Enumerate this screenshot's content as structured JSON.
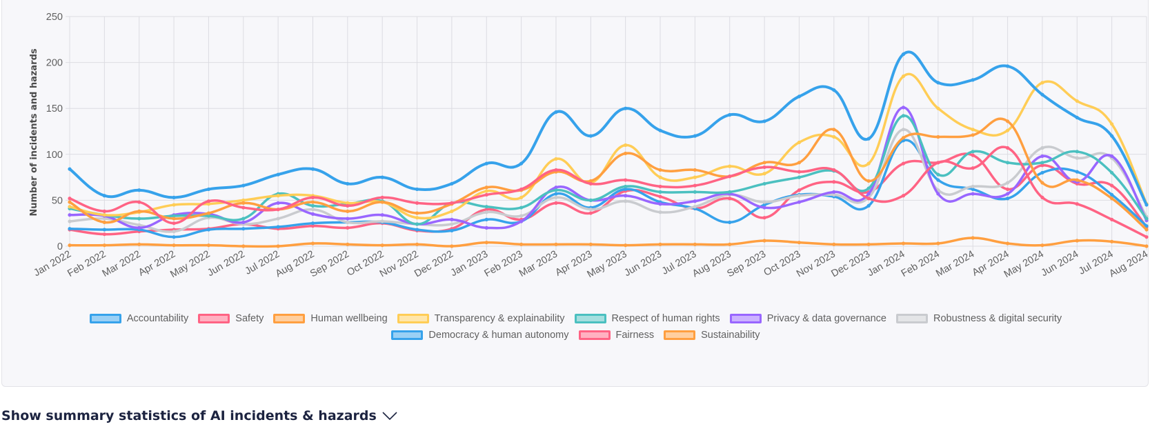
{
  "summary": {
    "label": "Show summary statistics of AI incidents & hazards"
  },
  "chart_data": {
    "type": "line",
    "title": "",
    "xlabel": "",
    "ylabel": "Number of incidents and hazards",
    "ylim": [
      0,
      250
    ],
    "yticks": [
      0,
      50,
      100,
      150,
      200,
      250
    ],
    "grid": true,
    "legend_position": "bottom",
    "categories": [
      "Jan 2022",
      "Feb 2022",
      "Mar 2022",
      "Apr 2022",
      "May 2022",
      "Jun 2022",
      "Jul 2022",
      "Aug 2022",
      "Sep 2022",
      "Oct 2022",
      "Nov 2022",
      "Dec 2022",
      "Jan 2023",
      "Feb 2023",
      "Mar 2023",
      "Apr 2023",
      "May 2023",
      "Jun 2023",
      "Jul 2023",
      "Aug 2023",
      "Sep 2023",
      "Oct 2023",
      "Nov 2023",
      "Dec 2023",
      "Jan 2024",
      "Feb 2024",
      "Mar 2024",
      "Apr 2024",
      "May 2024",
      "Jun 2024",
      "Jul 2024",
      "Aug 2024"
    ],
    "series": [
      {
        "name": "Accountability",
        "color": "#36a2eb",
        "fill": "#9ad0f5",
        "width": 4,
        "values": [
          84,
          55,
          61,
          53,
          62,
          66,
          78,
          84,
          68,
          75,
          62,
          68,
          90,
          90,
          146,
          120,
          150,
          126,
          120,
          143,
          136,
          163,
          170,
          117,
          209,
          178,
          181,
          196,
          165,
          140,
          120,
          45
        ]
      },
      {
        "name": "Safety",
        "color": "#ff6384",
        "fill": "#ffb1c1",
        "width": 3.5,
        "values": [
          52,
          38,
          48,
          25,
          49,
          42,
          40,
          53,
          44,
          53,
          47,
          47,
          56,
          62,
          83,
          68,
          72,
          65,
          66,
          76,
          86,
          81,
          83,
          52,
          55,
          91,
          85,
          107,
          53,
          46,
          29,
          10
        ]
      },
      {
        "name": "Human wellbeing",
        "color": "#ff9f40",
        "fill": "#ffcf9f",
        "width": 3.5,
        "values": [
          48,
          26,
          38,
          30,
          36,
          47,
          40,
          48,
          38,
          48,
          36,
          46,
          64,
          61,
          81,
          71,
          101,
          83,
          83,
          76,
          91,
          91,
          127,
          71,
          118,
          119,
          121,
          136,
          69,
          72,
          52,
          18
        ]
      },
      {
        "name": "Transparency & explainability",
        "color": "#ffcd56",
        "fill": "#ffe6aa",
        "width": 3.5,
        "values": [
          43,
          34,
          37,
          45,
          46,
          50,
          55,
          55,
          47,
          48,
          31,
          38,
          60,
          53,
          95,
          69,
          110,
          75,
          75,
          87,
          79,
          113,
          119,
          90,
          185,
          150,
          127,
          126,
          178,
          158,
          133,
          46
        ]
      },
      {
        "name": "Respect of human rights",
        "color": "#4bc0c0",
        "fill": "#a5dfdf",
        "width": 3.5,
        "values": [
          41,
          34,
          30,
          33,
          33,
          30,
          57,
          44,
          46,
          49,
          24,
          47,
          43,
          42,
          61,
          50,
          65,
          59,
          59,
          59,
          68,
          75,
          82,
          63,
          142,
          78,
          103,
          91,
          91,
          103,
          80,
          30
        ]
      },
      {
        "name": "Privacy & data governance",
        "color": "#9966ff",
        "fill": "#ccb2ff",
        "width": 3.5,
        "values": [
          34,
          33,
          20,
          34,
          35,
          26,
          47,
          35,
          30,
          34,
          24,
          29,
          20,
          27,
          64,
          50,
          55,
          46,
          49,
          57,
          42,
          48,
          59,
          57,
          151,
          57,
          57,
          57,
          98,
          70,
          98,
          28
        ]
      },
      {
        "name": "Robustness & digital security",
        "color": "#c9cbcf",
        "fill": "#e4e5e7",
        "width": 3.5,
        "values": [
          27,
          30,
          23,
          16,
          31,
          24,
          30,
          40,
          26,
          27,
          24,
          24,
          37,
          33,
          53,
          40,
          49,
          37,
          43,
          56,
          48,
          55,
          56,
          53,
          127,
          61,
          65,
          69,
          107,
          96,
          96,
          32
        ]
      },
      {
        "name": "Democracy & human autonomy",
        "color": "#36a2eb",
        "fill": "#9ad0f5",
        "width": 3.5,
        "values": [
          19,
          18,
          18,
          10,
          18,
          19,
          21,
          25,
          26,
          26,
          18,
          17,
          29,
          27,
          57,
          42,
          62,
          48,
          41,
          26,
          45,
          56,
          54,
          44,
          115,
          72,
          62,
          52,
          80,
          81,
          56,
          22
        ]
      },
      {
        "name": "Fairness",
        "color": "#ff6384",
        "fill": "#ffb1c1",
        "width": 3.5,
        "values": [
          18,
          13,
          16,
          18,
          19,
          24,
          19,
          22,
          20,
          25,
          17,
          19,
          40,
          29,
          47,
          36,
          60,
          54,
          41,
          52,
          31,
          61,
          70,
          59,
          90,
          91,
          99,
          62,
          88,
          68,
          66,
          21
        ]
      },
      {
        "name": "Sustainability",
        "color": "#ff9f40",
        "fill": "#ffcf9f",
        "width": 3.5,
        "values": [
          1,
          1,
          2,
          1,
          1,
          0,
          0,
          3,
          2,
          1,
          2,
          0,
          4,
          2,
          2,
          2,
          1,
          2,
          2,
          2,
          6,
          4,
          2,
          2,
          3,
          3,
          9,
          3,
          1,
          6,
          5,
          0
        ]
      }
    ]
  }
}
